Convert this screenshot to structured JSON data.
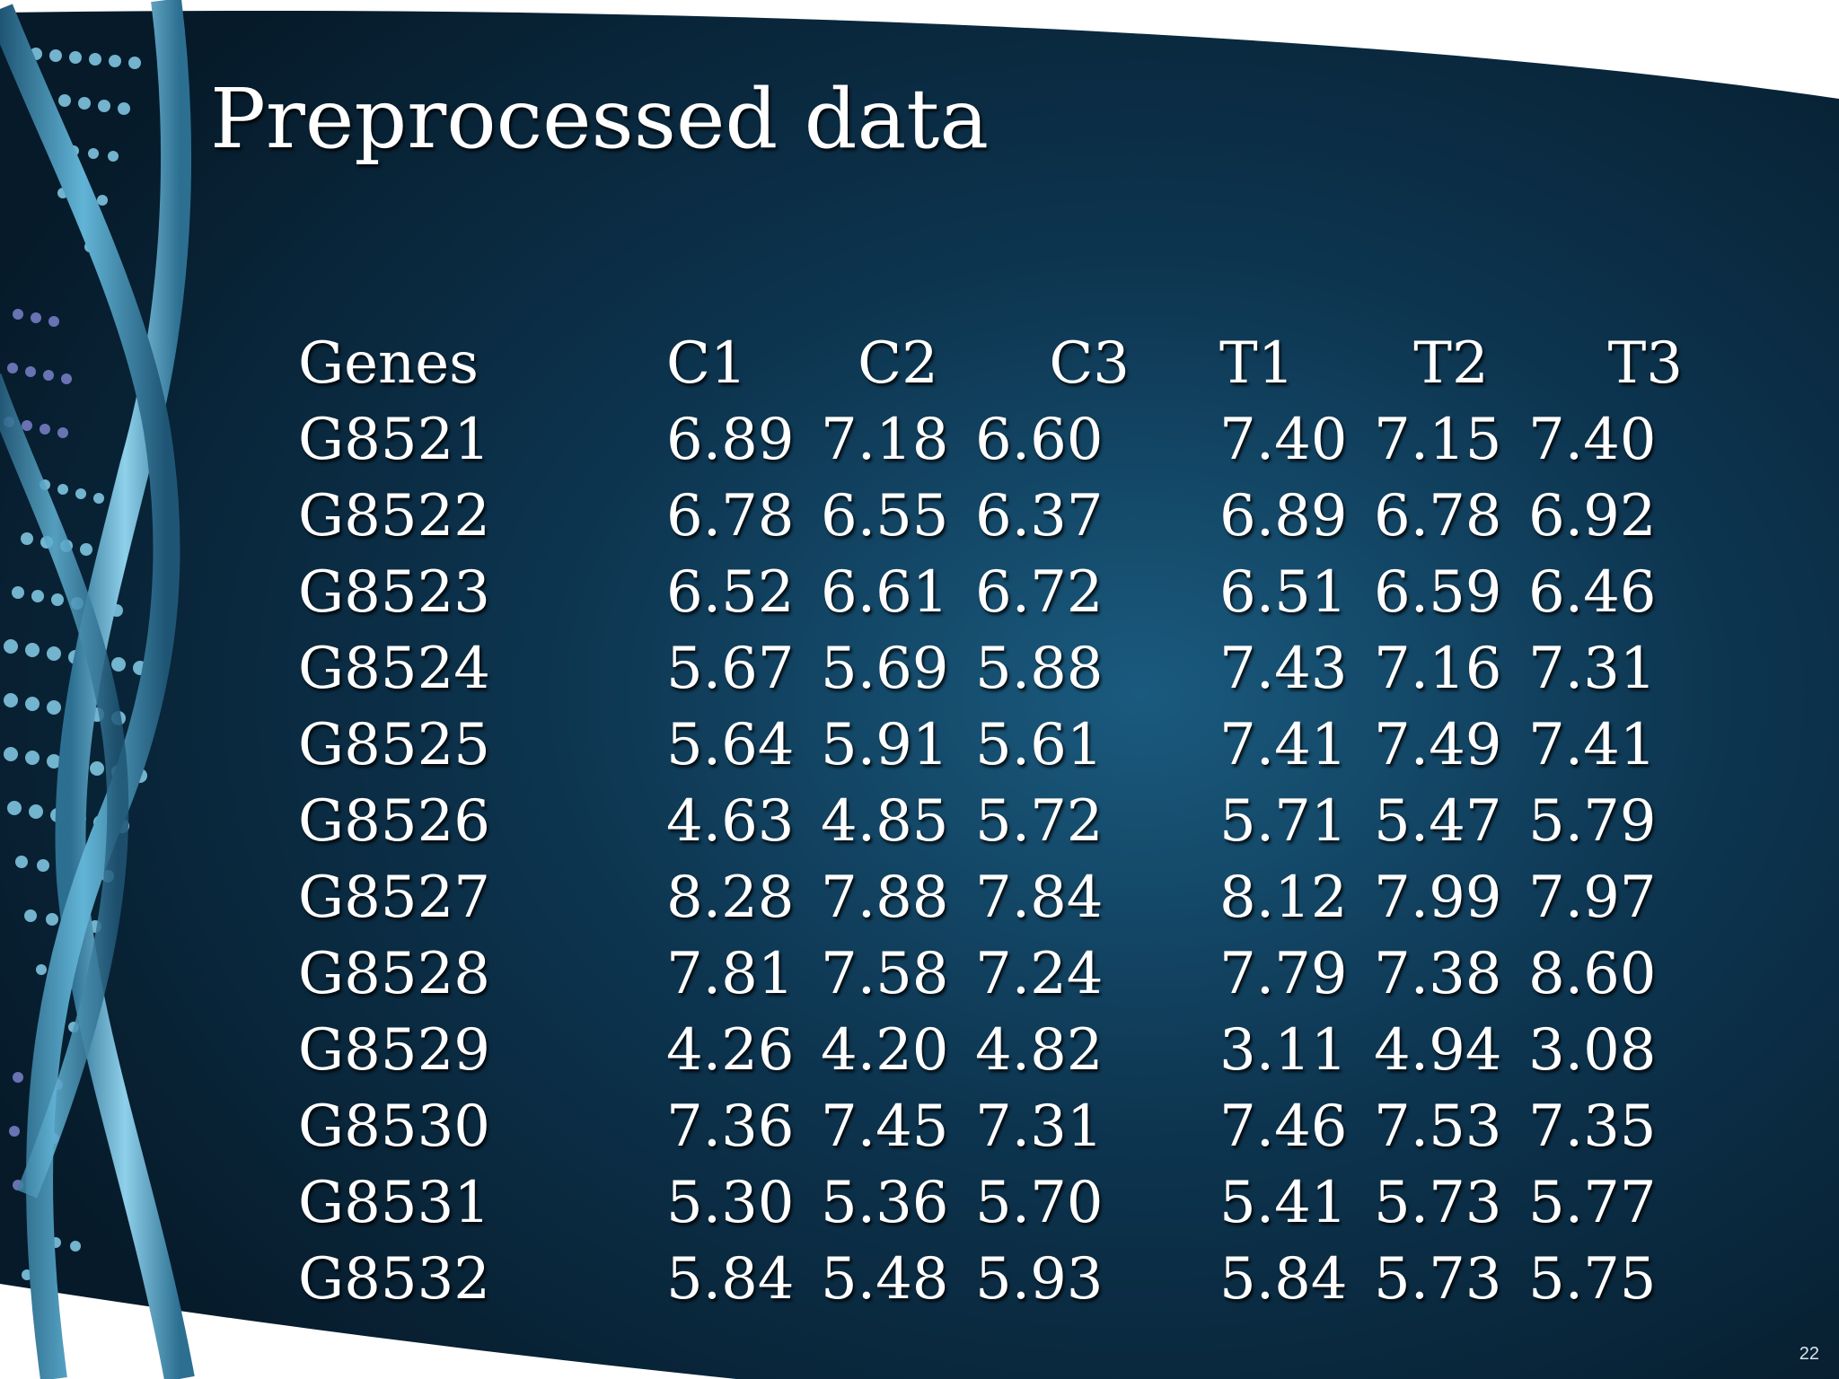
{
  "slide": {
    "title": "Preprocessed data",
    "page_number": "22",
    "background_color": "#0b2a3f",
    "accent_color": "#4fa3c7",
    "decorative_image": "dna-helix"
  },
  "table": {
    "headers": [
      "Genes",
      "C1",
      "C2",
      "C3",
      "T1",
      "T2",
      "T3"
    ],
    "rows": [
      [
        "G8521",
        "6.89",
        "7.18",
        "6.60",
        "7.40",
        "7.15",
        "7.40"
      ],
      [
        "G8522",
        "6.78",
        "6.55",
        "6.37",
        "6.89",
        "6.78",
        "6.92"
      ],
      [
        "G8523",
        "6.52",
        "6.61",
        "6.72",
        "6.51",
        "6.59",
        "6.46"
      ],
      [
        "G8524",
        "5.67",
        "5.69",
        "5.88",
        "7.43",
        "7.16",
        "7.31"
      ],
      [
        "G8525",
        "5.64",
        "5.91",
        "5.61",
        "7.41",
        "7.49",
        "7.41"
      ],
      [
        "G8526",
        "4.63",
        "4.85",
        "5.72",
        "5.71",
        "5.47",
        "5.79"
      ],
      [
        "G8527",
        "8.28",
        "7.88",
        "7.84",
        "8.12",
        "7.99",
        "7.97"
      ],
      [
        "G8528",
        "7.81",
        "7.58",
        "7.24",
        "7.79",
        "7.38",
        "8.60"
      ],
      [
        "G8529",
        "4.26",
        "4.20",
        "4.82",
        "3.11",
        "4.94",
        "3.08"
      ],
      [
        "G8530",
        "7.36",
        "7.45",
        "7.31",
        "7.46",
        "7.53",
        "7.35"
      ],
      [
        "G8531",
        "5.30",
        "5.36",
        "5.70",
        "5.41",
        "5.73",
        "5.77"
      ],
      [
        "G8532",
        "5.84",
        "5.48",
        "5.93",
        "5.84",
        "5.73",
        "5.75"
      ]
    ]
  }
}
